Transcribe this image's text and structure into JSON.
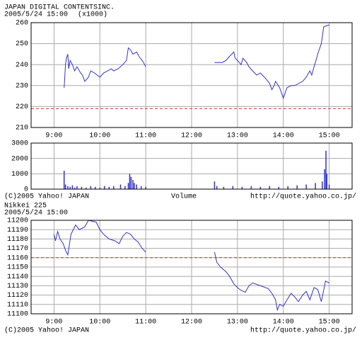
{
  "chart_data": [
    {
      "type": "line",
      "title": "JAPAN DIGITAL CONTENTSINC.",
      "subtitle": "2005/5/24 15:00",
      "unit_note": "(x1000)",
      "x": [
        9.22,
        9.23,
        9.25,
        9.27,
        9.3,
        9.32,
        9.35,
        9.4,
        9.45,
        9.5,
        9.58,
        9.62,
        9.67,
        9.75,
        9.8,
        9.88,
        10.0,
        10.08,
        10.17,
        10.25,
        10.3,
        10.4,
        10.5,
        10.58,
        10.62,
        10.67,
        10.72,
        10.8,
        10.85,
        10.92,
        10.95,
        11.0,
        null,
        12.5,
        12.67,
        12.75,
        12.83,
        12.92,
        12.95,
        13.0,
        13.08,
        13.12,
        13.2,
        13.25,
        13.33,
        13.42,
        13.5,
        13.63,
        13.7,
        13.75,
        13.8,
        13.83,
        13.92,
        14.0,
        14.08,
        14.17,
        14.25,
        14.42,
        14.5,
        14.58,
        14.62,
        14.67,
        14.7,
        14.75,
        14.78,
        14.83,
        14.88,
        15.0
      ],
      "series": [
        {
          "name": "price",
          "color": "#3333cc",
          "values": [
            229,
            232,
            240,
            243,
            245,
            238,
            242,
            240,
            237,
            239,
            236,
            235,
            232,
            234,
            237,
            236,
            234,
            236,
            237,
            238,
            237,
            238,
            240,
            242,
            248,
            247,
            245,
            246,
            244,
            242,
            241,
            239,
            null,
            241,
            241,
            242,
            244,
            246,
            243,
            242,
            240,
            243,
            241,
            239,
            237,
            235,
            236,
            233,
            231,
            228,
            230,
            232,
            229,
            224,
            229,
            230,
            230,
            232,
            234,
            237,
            235,
            239,
            241,
            245,
            247,
            250,
            258,
            259
          ]
        }
      ],
      "reference_line": {
        "value": 219,
        "color": "#cc3333"
      },
      "xlim": [
        8.5,
        15.5
      ],
      "xticks": [
        {
          "value": 9,
          "label": "9:00"
        },
        {
          "value": 10,
          "label": "10:00"
        },
        {
          "value": 11,
          "label": "11:00"
        },
        {
          "value": 12,
          "label": "12:00"
        },
        {
          "value": 13,
          "label": "13:00"
        },
        {
          "value": 14,
          "label": "14:00"
        },
        {
          "value": 15,
          "label": "15:00"
        }
      ],
      "ylim": [
        210,
        260
      ],
      "yticks": [
        210,
        220,
        230,
        240,
        250,
        260
      ],
      "grid": true
    },
    {
      "type": "bar",
      "title": "Volume",
      "credit": "(C)2005 Yahoo! JAPAN",
      "url": "http://quote.yahoo.co.jp/",
      "x": [
        9.22,
        9.25,
        9.3,
        9.35,
        9.4,
        9.45,
        9.5,
        9.6,
        9.7,
        9.8,
        9.9,
        10.0,
        10.1,
        10.2,
        10.3,
        10.45,
        10.55,
        10.62,
        10.65,
        10.68,
        10.72,
        10.75,
        10.8,
        10.9,
        11.0,
        12.5,
        12.55,
        12.7,
        12.9,
        13.1,
        13.3,
        13.5,
        13.7,
        13.9,
        14.1,
        14.3,
        14.5,
        14.7,
        14.85,
        14.9,
        14.93,
        14.95,
        15.0
      ],
      "series": [
        {
          "name": "volume",
          "color": "#3333cc",
          "values": [
            1200,
            300,
            200,
            150,
            250,
            100,
            200,
            150,
            100,
            200,
            150,
            100,
            200,
            150,
            200,
            300,
            200,
            400,
            1000,
            800,
            600,
            400,
            300,
            200,
            150,
            500,
            200,
            150,
            200,
            150,
            200,
            150,
            200,
            150,
            200,
            250,
            300,
            400,
            500,
            1300,
            2500,
            1000,
            300
          ]
        }
      ],
      "xlim": [
        8.5,
        15.5
      ],
      "xticks": [
        {
          "value": 9,
          "label": "9:00"
        },
        {
          "value": 10,
          "label": "10:00"
        },
        {
          "value": 11,
          "label": "11:00"
        },
        {
          "value": 12,
          "label": "12:00"
        },
        {
          "value": 13,
          "label": "13:00"
        },
        {
          "value": 14,
          "label": "14:00"
        },
        {
          "value": 15,
          "label": "15:00"
        }
      ],
      "ylim": [
        0,
        3000
      ],
      "yticks": [
        0,
        1000,
        2000,
        3000
      ],
      "grid": true
    },
    {
      "type": "line",
      "title": "Nikkei 225",
      "subtitle": "2005/5/24 15:00",
      "credit": "(C)2005 Yahoo! JAPAN",
      "url": "http://quote.yahoo.co.jp/",
      "x": [
        9.0,
        9.03,
        9.08,
        9.13,
        9.2,
        9.25,
        9.3,
        9.37,
        9.47,
        9.55,
        9.67,
        9.75,
        9.92,
        10.0,
        10.08,
        10.2,
        10.33,
        10.42,
        10.5,
        10.58,
        10.67,
        10.75,
        10.83,
        10.92,
        11.0,
        null,
        12.5,
        12.55,
        12.63,
        12.75,
        12.83,
        12.92,
        13.0,
        13.08,
        13.17,
        13.25,
        13.33,
        13.5,
        13.67,
        13.75,
        13.83,
        13.87,
        13.92,
        14.0,
        14.08,
        14.17,
        14.25,
        14.33,
        14.42,
        14.5,
        14.58,
        14.67,
        14.75,
        14.83,
        14.92,
        15.0
      ],
      "series": [
        {
          "name": "Nikkei",
          "color": "#3333cc",
          "values": [
            11185,
            11178,
            11188,
            11180,
            11175,
            11168,
            11163,
            11185,
            11195,
            11190,
            11193,
            11200,
            11198,
            11190,
            11185,
            11180,
            11178,
            11175,
            11183,
            11187,
            11185,
            11180,
            11177,
            11170,
            11166,
            null,
            11166,
            11155,
            11150,
            11145,
            11140,
            11132,
            11128,
            11125,
            11123,
            11130,
            11133,
            11130,
            11127,
            11122,
            11115,
            11104,
            11110,
            11108,
            11115,
            11122,
            11118,
            11113,
            11120,
            11124,
            11115,
            11128,
            11126,
            11113,
            11135,
            11133
          ]
        }
      ],
      "reference_line": {
        "value": 11160,
        "color": "#cc3333"
      },
      "xlim": [
        8.5,
        15.5
      ],
      "xticks": [
        {
          "value": 9,
          "label": "9:00"
        },
        {
          "value": 10,
          "label": "10:00"
        },
        {
          "value": 11,
          "label": "11:00"
        },
        {
          "value": 12,
          "label": "12:00"
        },
        {
          "value": 13,
          "label": "13:00"
        },
        {
          "value": 14,
          "label": "14:00"
        },
        {
          "value": 15,
          "label": "15:00"
        }
      ],
      "ylim": [
        11100,
        11200
      ],
      "yticks": [
        11100,
        11110,
        11120,
        11130,
        11140,
        11150,
        11160,
        11170,
        11180,
        11190,
        11200
      ],
      "grid": true
    }
  ]
}
